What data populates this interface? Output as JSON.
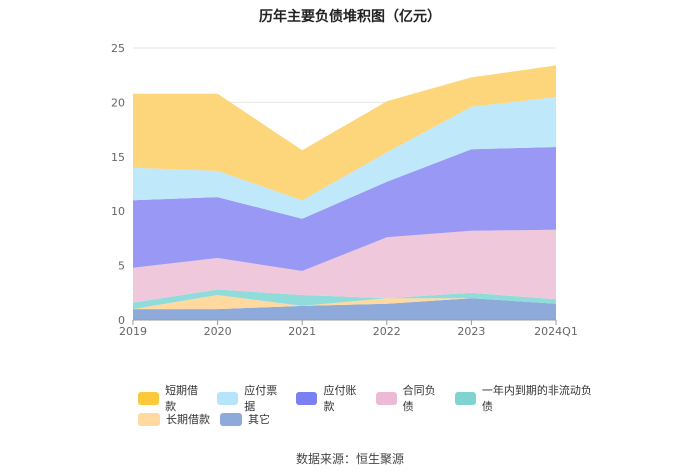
{
  "chart_data": {
    "type": "area",
    "stacked": true,
    "title": "历年主要负债堆积图（亿元）",
    "categories": [
      "2019",
      "2020",
      "2021",
      "2022",
      "2023",
      "2024Q1"
    ],
    "ylim": [
      0,
      25
    ],
    "yticks": [
      "0",
      "5",
      "10",
      "15",
      "20",
      "25"
    ],
    "grid": true,
    "legend_position": "bottom",
    "series": [
      {
        "name": "其它",
        "color": "#8eaadb",
        "values": [
          1.0,
          1.0,
          1.3,
          1.5,
          2.0,
          1.5
        ]
      },
      {
        "name": "长期借款",
        "color": "#ffd9a0",
        "values": [
          0.0,
          1.3,
          0.0,
          0.5,
          0.0,
          0.0
        ]
      },
      {
        "name": "一年内到期的非流动负债",
        "color": "#90dcda",
        "values": [
          0.6,
          0.5,
          1.0,
          0.0,
          0.5,
          0.4
        ]
      },
      {
        "name": "合同负债",
        "color": "#f0c8dc",
        "values": [
          3.2,
          2.9,
          2.2,
          5.6,
          5.7,
          6.4
        ]
      },
      {
        "name": "应付账款",
        "color": "#9999f5",
        "values": [
          6.2,
          5.6,
          4.8,
          5.1,
          7.5,
          7.6
        ]
      },
      {
        "name": "应付票据",
        "color": "#bfe8fb",
        "values": [
          3.0,
          2.4,
          1.7,
          2.7,
          3.9,
          4.6
        ]
      },
      {
        "name": "短期借款",
        "color": "#fdd57a",
        "values": [
          6.8,
          7.1,
          4.6,
          4.7,
          2.7,
          2.9
        ]
      }
    ],
    "legend_rows": [
      [
        {
          "name": "短期借款",
          "color": "#fcc93a"
        },
        {
          "name": "应付票据",
          "color": "#b6e5fb"
        },
        {
          "name": "应付账款",
          "color": "#7a7ff2"
        },
        {
          "name": "合同负债",
          "color": "#ecbad6"
        },
        {
          "name": "一年内到期的非流动负债",
          "color": "#7fd4d2"
        }
      ],
      [
        {
          "name": "长期借款",
          "color": "#ffd9a0"
        },
        {
          "name": "其它",
          "color": "#8eaadb"
        }
      ]
    ]
  },
  "source": "数据来源：恒生聚源"
}
